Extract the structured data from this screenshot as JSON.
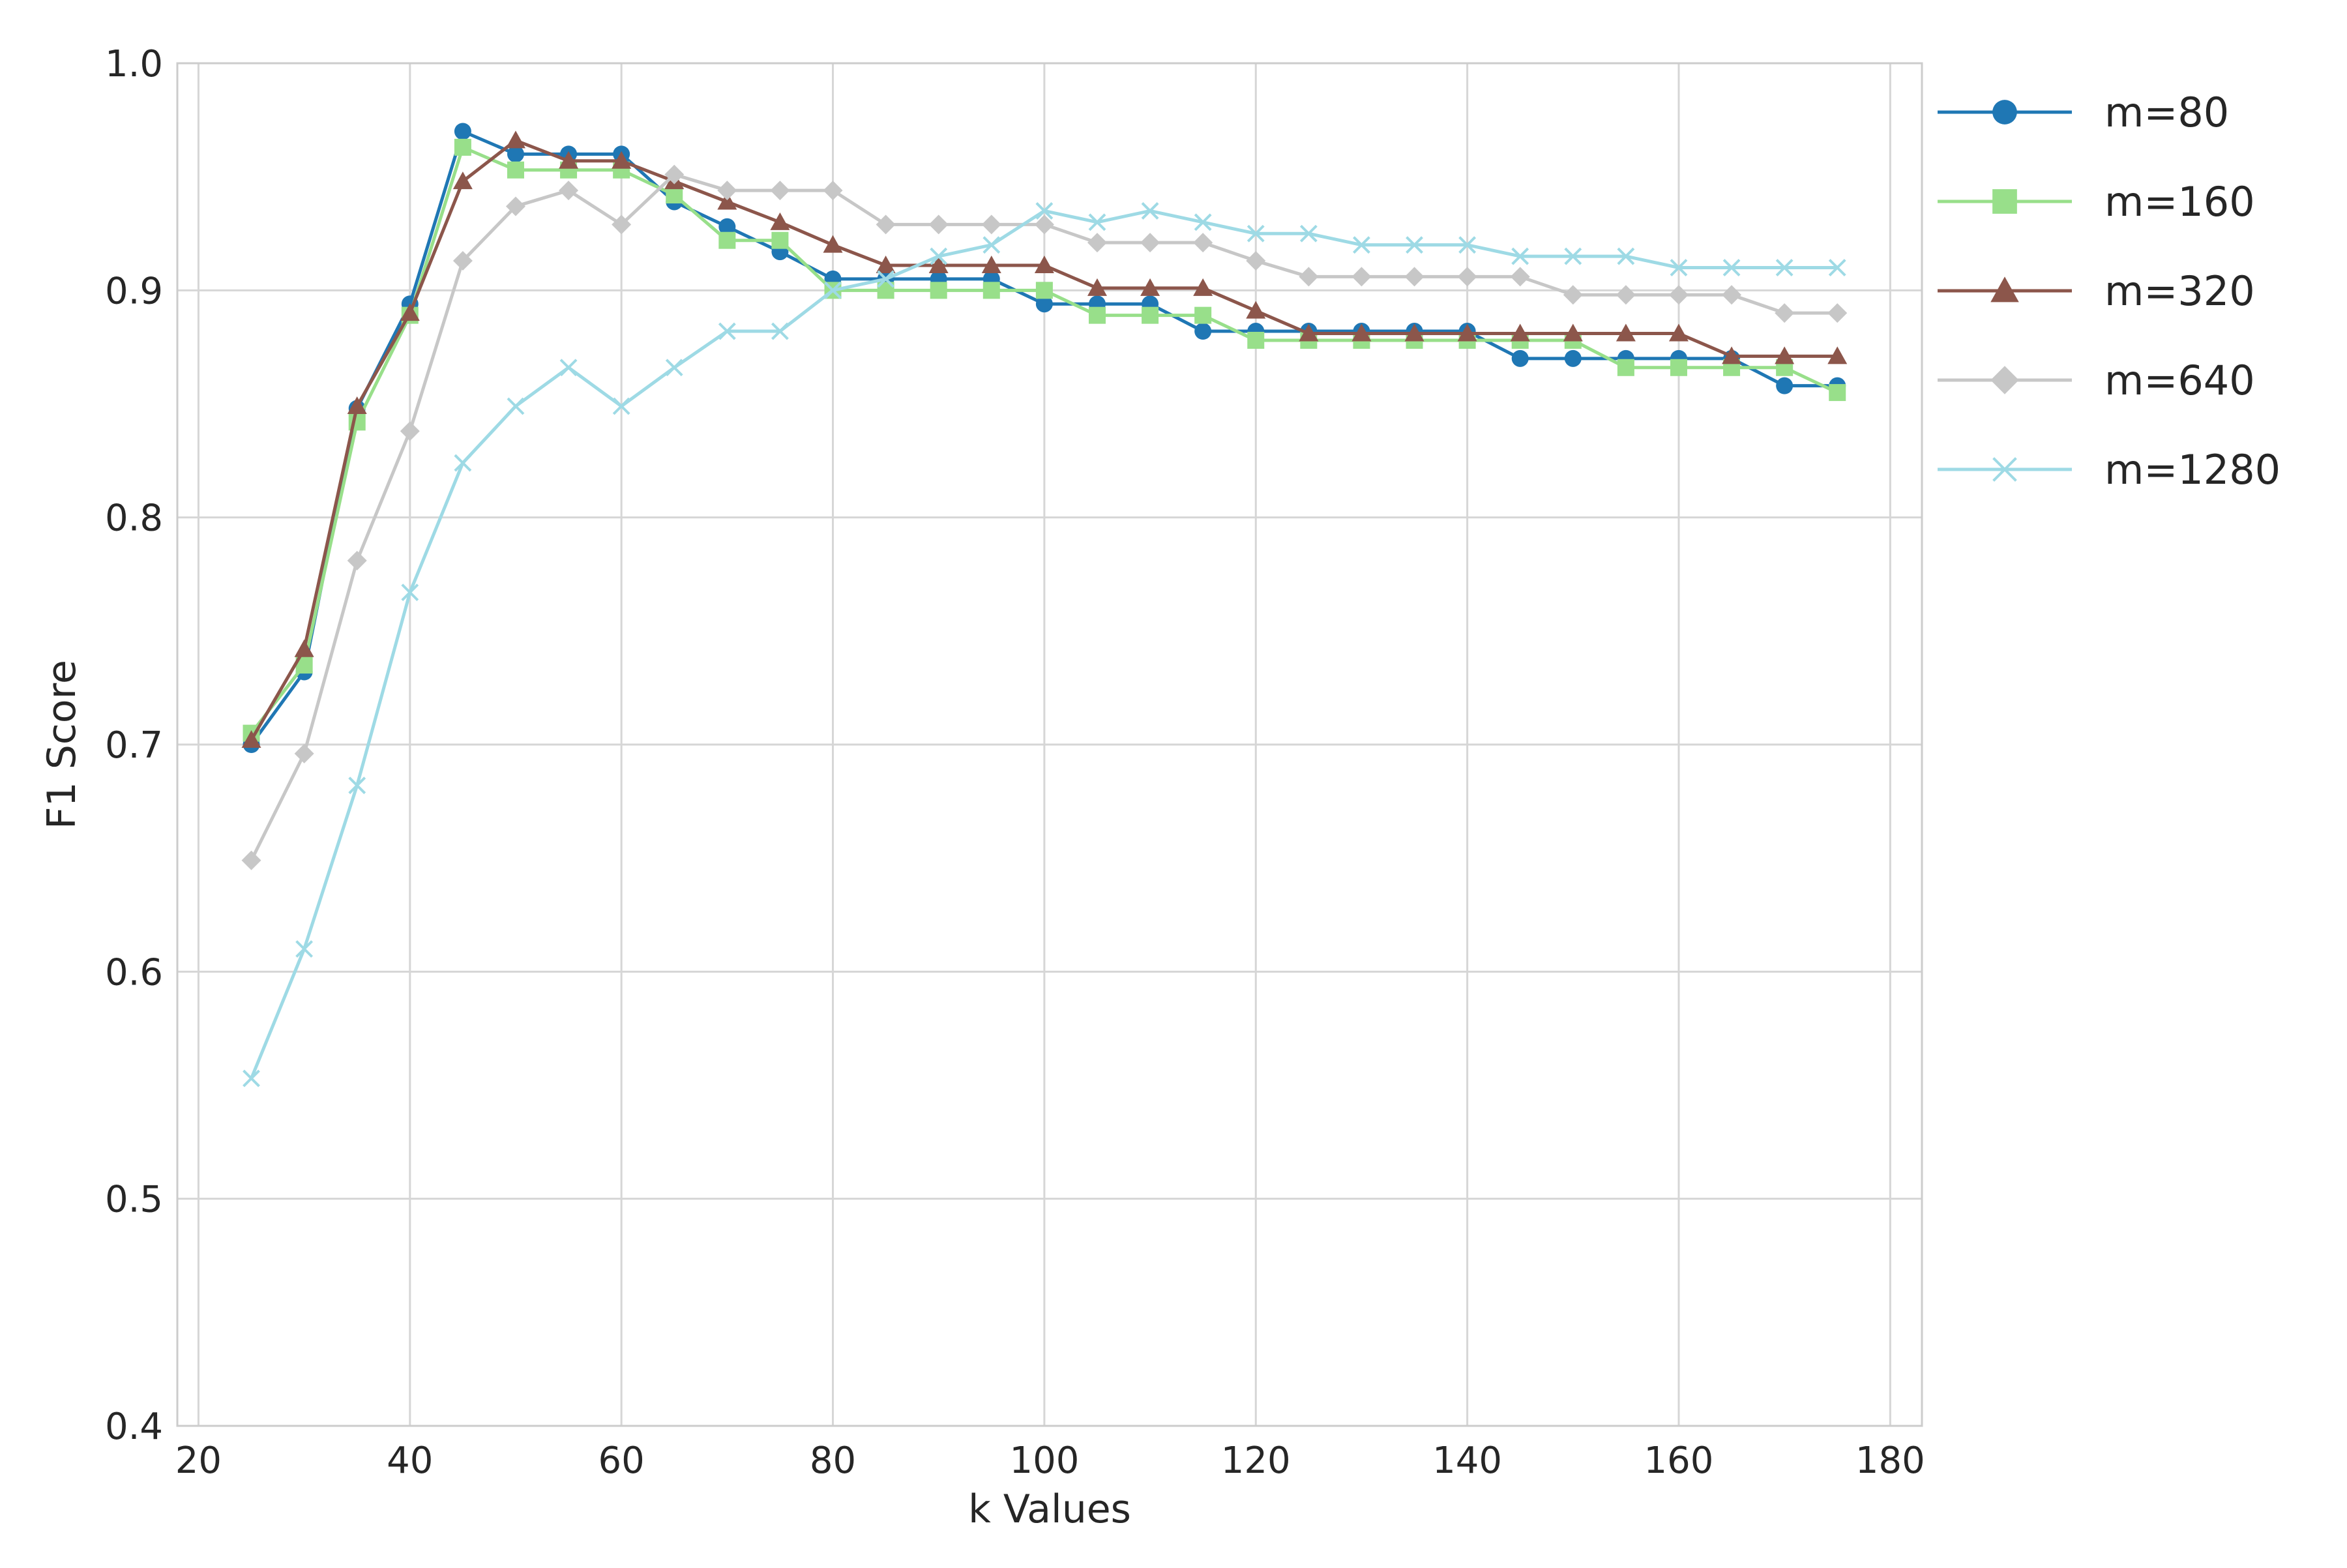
{
  "chart_data": {
    "type": "line",
    "title": "",
    "xlabel": "k Values",
    "ylabel": "F1 Score",
    "xlim": [
      18,
      183
    ],
    "ylim": [
      0.4,
      1.0
    ],
    "xticks": [
      20,
      40,
      60,
      80,
      100,
      120,
      140,
      160,
      180
    ],
    "yticks": [
      0.4,
      0.5,
      0.6,
      0.7,
      0.8,
      0.9,
      1.0
    ],
    "xtick_labels": [
      "20",
      "40",
      "60",
      "80",
      "100",
      "120",
      "140",
      "160",
      "180"
    ],
    "ytick_labels": [
      "0.4",
      "0.5",
      "0.6",
      "0.7",
      "0.8",
      "0.9",
      "1.0"
    ],
    "grid": true,
    "legend_position": "outside-right-top",
    "x": [
      25,
      30,
      35,
      40,
      45,
      50,
      55,
      60,
      65,
      70,
      75,
      80,
      85,
      90,
      95,
      100,
      105,
      110,
      115,
      120,
      125,
      130,
      135,
      140,
      145,
      150,
      155,
      160,
      165,
      170,
      175
    ],
    "series": [
      {
        "name": "m=80",
        "color": "#1f77b4",
        "marker": "circle",
        "values": [
          0.7,
          0.732,
          0.848,
          0.894,
          0.97,
          0.96,
          0.96,
          0.96,
          0.939,
          0.928,
          0.917,
          0.905,
          0.905,
          0.905,
          0.905,
          0.894,
          0.894,
          0.894,
          0.882,
          0.882,
          0.882,
          0.882,
          0.882,
          0.882,
          0.87,
          0.87,
          0.87,
          0.87,
          0.87,
          0.858,
          0.858
        ]
      },
      {
        "name": "m=160",
        "color": "#98df8a",
        "marker": "square",
        "values": [
          0.705,
          0.735,
          0.842,
          0.889,
          0.963,
          0.953,
          0.953,
          0.953,
          0.942,
          0.922,
          0.922,
          0.9,
          0.9,
          0.9,
          0.9,
          0.9,
          0.889,
          0.889,
          0.889,
          0.878,
          0.878,
          0.878,
          0.878,
          0.878,
          0.878,
          0.878,
          0.866,
          0.866,
          0.866,
          0.866,
          0.855
        ]
      },
      {
        "name": "m=320",
        "color": "#8c564b",
        "marker": "triangle",
        "values": [
          0.702,
          0.742,
          0.849,
          0.89,
          0.948,
          0.966,
          0.957,
          0.957,
          0.948,
          0.939,
          0.93,
          0.92,
          0.911,
          0.911,
          0.911,
          0.911,
          0.901,
          0.901,
          0.901,
          0.891,
          0.881,
          0.881,
          0.881,
          0.881,
          0.881,
          0.881,
          0.881,
          0.881,
          0.871,
          0.871,
          0.871
        ]
      },
      {
        "name": "m=640",
        "color": "#c7c7c7",
        "marker": "diamond",
        "values": [
          0.649,
          0.696,
          0.781,
          0.838,
          0.913,
          0.937,
          0.944,
          0.929,
          0.951,
          0.944,
          0.944,
          0.944,
          0.929,
          0.929,
          0.929,
          0.929,
          0.921,
          0.921,
          0.921,
          0.913,
          0.906,
          0.906,
          0.906,
          0.906,
          0.906,
          0.898,
          0.898,
          0.898,
          0.898,
          0.89,
          0.89
        ]
      },
      {
        "name": "m=1280",
        "color": "#9edae5",
        "marker": "x",
        "values": [
          0.553,
          0.61,
          0.682,
          0.767,
          0.824,
          0.849,
          0.866,
          0.849,
          0.866,
          0.882,
          0.882,
          0.9,
          0.905,
          0.915,
          0.92,
          0.935,
          0.93,
          0.935,
          0.93,
          0.925,
          0.925,
          0.92,
          0.92,
          0.92,
          0.915,
          0.915,
          0.915,
          0.91,
          0.91,
          0.91,
          0.91
        ]
      }
    ]
  }
}
